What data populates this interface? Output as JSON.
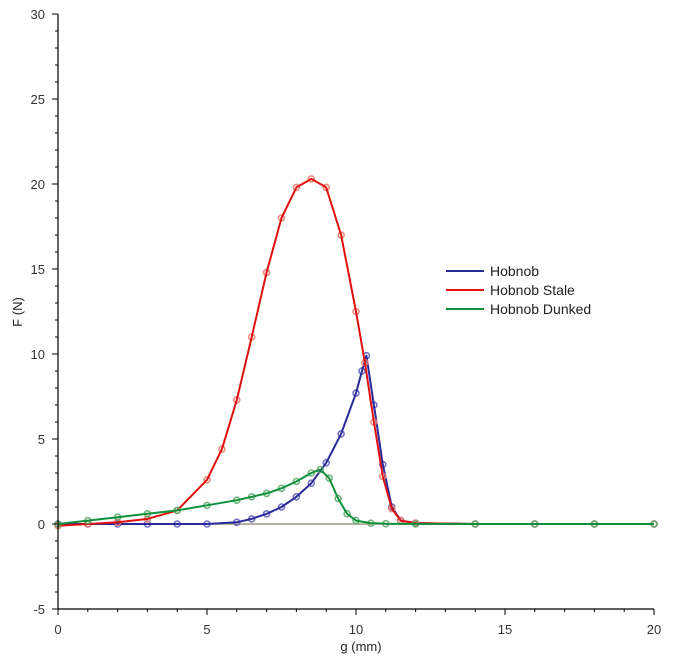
{
  "chart_data": {
    "type": "line",
    "title": "",
    "xlabel": "g (mm)",
    "ylabel": "F (N)",
    "xlim": [
      0,
      20
    ],
    "ylim": [
      -5,
      30
    ],
    "x_ticks": [
      0,
      5,
      10,
      15,
      20
    ],
    "y_ticks": [
      -5,
      0,
      5,
      10,
      15,
      20,
      25,
      30
    ],
    "x_minor_step": 1,
    "y_minor_step": 1,
    "grid": false,
    "baseline": {
      "y": 0,
      "color": "#9a9a80"
    },
    "legend": {
      "position": "right"
    },
    "series": [
      {
        "name": "Hobnob",
        "color": "#2a2a9a",
        "marker_color": "#5a5ab8",
        "x": [
          0,
          1,
          2,
          3,
          4,
          5,
          6,
          6.5,
          7,
          7.5,
          8,
          8.5,
          9,
          9.5,
          10,
          10.2,
          10.35,
          10.6,
          10.9,
          11.2,
          11.5,
          12,
          14,
          16,
          18,
          20
        ],
        "y": [
          0,
          0,
          0,
          0,
          0,
          0,
          0.1,
          0.3,
          0.6,
          1.0,
          1.6,
          2.4,
          3.6,
          5.3,
          7.7,
          9.0,
          9.9,
          7.0,
          3.5,
          1.0,
          0.2,
          0.05,
          0,
          0,
          0,
          0
        ]
      },
      {
        "name": "Hobnob Stale",
        "color": "#e01010",
        "marker_color": "#e87a6a",
        "x": [
          0,
          1,
          2,
          3,
          4,
          5,
          5.5,
          6,
          6.5,
          7,
          7.5,
          8,
          8.5,
          9,
          9.5,
          10,
          10.3,
          10.6,
          10.9,
          11.2,
          11.5,
          12,
          14,
          16,
          18,
          20
        ],
        "y": [
          -0.1,
          0,
          0.1,
          0.3,
          0.8,
          2.6,
          4.4,
          7.3,
          11.0,
          14.8,
          18.0,
          19.8,
          20.3,
          19.8,
          17.0,
          12.5,
          9.5,
          6.0,
          2.8,
          0.9,
          0.2,
          0.05,
          0,
          0,
          0,
          0
        ]
      },
      {
        "name": "Hobnob Dunked",
        "color": "#10903a",
        "marker_color": "#5aa86a",
        "x": [
          0,
          1,
          2,
          3,
          4,
          5,
          6,
          6.5,
          7,
          7.5,
          8,
          8.5,
          8.8,
          9.1,
          9.4,
          9.7,
          10,
          10.5,
          11,
          12,
          14,
          16,
          18,
          20
        ],
        "y": [
          0,
          0.2,
          0.4,
          0.6,
          0.8,
          1.1,
          1.4,
          1.6,
          1.8,
          2.1,
          2.5,
          3.0,
          3.2,
          2.7,
          1.5,
          0.6,
          0.2,
          0.05,
          0.02,
          0,
          0,
          0,
          0,
          0
        ]
      }
    ]
  }
}
